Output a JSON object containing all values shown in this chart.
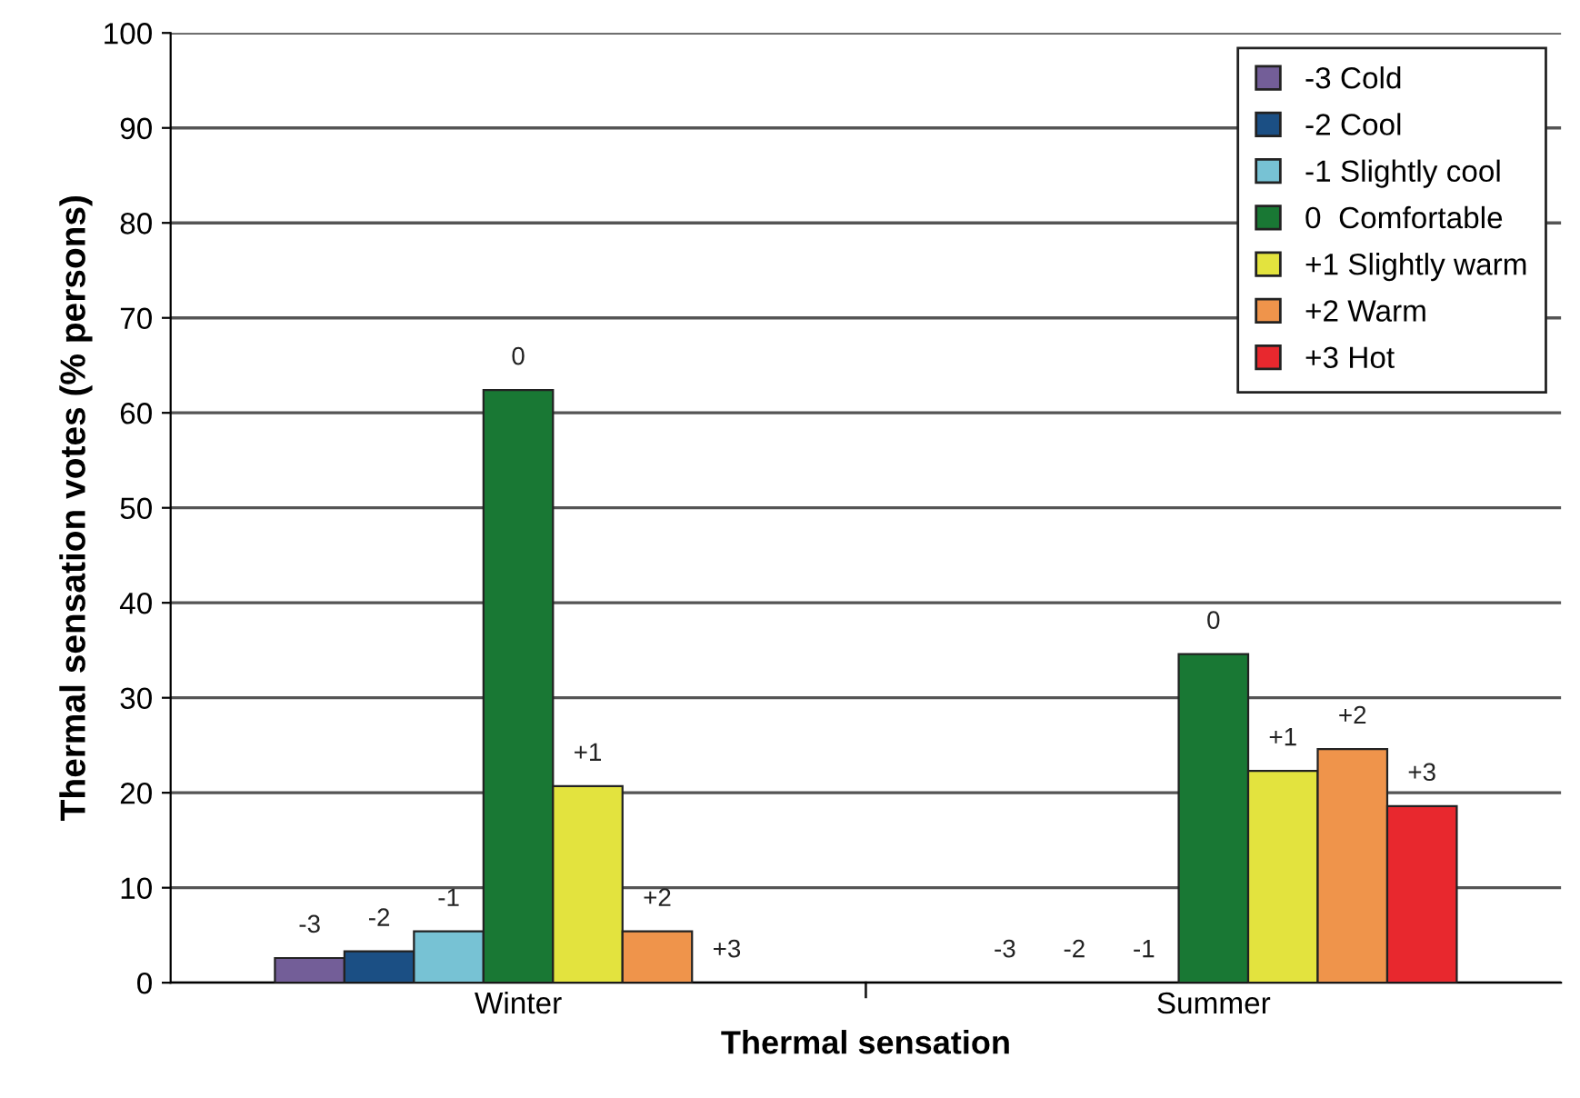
{
  "chart_data": {
    "type": "bar",
    "xlabel": "Thermal sensation",
    "ylabel": "Thermal sensation votes (% persons)",
    "categories": [
      "Winter",
      "Summer"
    ],
    "series": [
      {
        "name": "-3 Cold",
        "color": "#735e98",
        "values": [
          2.6,
          0
        ]
      },
      {
        "name": "-2 Cool",
        "color": "#1b4f84",
        "values": [
          3.3,
          0
        ]
      },
      {
        "name": "-1 Slightly cool",
        "color": "#77c2d4",
        "values": [
          5.4,
          0
        ]
      },
      {
        "name": "0  Comfortable",
        "color": "#197834",
        "values": [
          62.4,
          34.6
        ]
      },
      {
        "name": "+1 Slightly warm",
        "color": "#e3e33e",
        "values": [
          20.7,
          22.3
        ]
      },
      {
        "name": "+2 Warm",
        "color": "#ef944b",
        "values": [
          5.4,
          24.6
        ]
      },
      {
        "name": "+3 Hot",
        "color": "#e8282e",
        "values": [
          0,
          18.6
        ]
      }
    ],
    "annotations": [
      "-3",
      "-2",
      "-1",
      "0",
      "+1",
      "+2",
      "+3",
      "-3",
      "-2",
      "-1",
      "0",
      "+1",
      "+2",
      "+3"
    ],
    "ylim": [
      0,
      100
    ],
    "yticks": [
      0,
      10,
      20,
      30,
      40,
      50,
      60,
      70,
      80,
      90,
      100
    ],
    "grid": "y",
    "legend": "top right"
  }
}
